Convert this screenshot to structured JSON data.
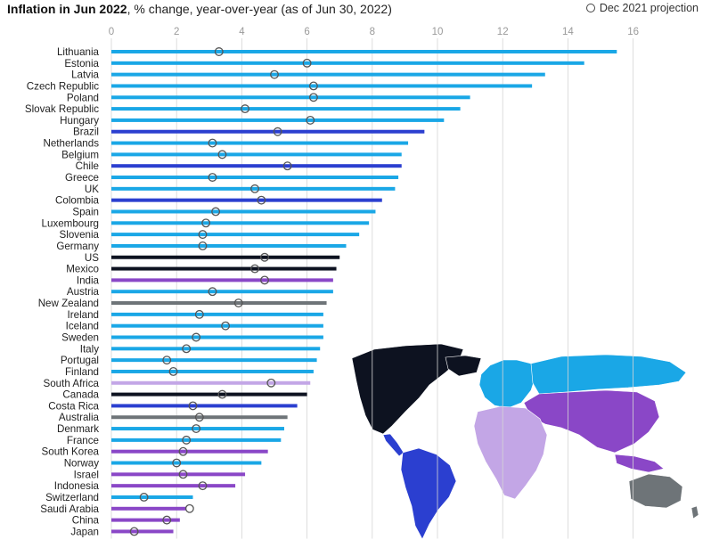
{
  "chart_data": {
    "type": "bar",
    "title": "Inflation in Jun 2022",
    "subtitle": ", % change, year-over-year (as of Jun 30, 2022)",
    "legend": [
      {
        "label": "Dec 2021 projection",
        "marker": "hollow-circle"
      }
    ],
    "legend_position": "top-right",
    "orientation": "horizontal",
    "xlim": [
      0,
      16
    ],
    "x_ticks": [
      0,
      2,
      4,
      6,
      8,
      10,
      12,
      14,
      16
    ],
    "colors": {
      "Europe": "#1aa7e6",
      "Latin America": "#2b3fd0",
      "North America": "#0d1220",
      "Asia / Middle East": "#8a47c7",
      "Africa": "#c3a6e6",
      "Oceania": "#6e7478"
    },
    "bars": [
      {
        "country": "Lithuania",
        "value": 15.5,
        "projection": 3.3,
        "region": "Europe"
      },
      {
        "country": "Estonia",
        "value": 14.5,
        "projection": 6.0,
        "region": "Europe"
      },
      {
        "country": "Latvia",
        "value": 13.3,
        "projection": 5.0,
        "region": "Europe"
      },
      {
        "country": "Czech Republic",
        "value": 12.9,
        "projection": 6.2,
        "region": "Europe"
      },
      {
        "country": "Poland",
        "value": 11.0,
        "projection": 6.2,
        "region": "Europe"
      },
      {
        "country": "Slovak Republic",
        "value": 10.7,
        "projection": 4.1,
        "region": "Europe"
      },
      {
        "country": "Hungary",
        "value": 10.2,
        "projection": 6.1,
        "region": "Europe"
      },
      {
        "country": "Brazil",
        "value": 9.6,
        "projection": 5.1,
        "region": "Latin America"
      },
      {
        "country": "Netherlands",
        "value": 9.1,
        "projection": 3.1,
        "region": "Europe"
      },
      {
        "country": "Belgium",
        "value": 8.9,
        "projection": 3.4,
        "region": "Europe"
      },
      {
        "country": "Chile",
        "value": 8.9,
        "projection": 5.4,
        "region": "Latin America"
      },
      {
        "country": "Greece",
        "value": 8.8,
        "projection": 3.1,
        "region": "Europe"
      },
      {
        "country": "UK",
        "value": 8.7,
        "projection": 4.4,
        "region": "Europe"
      },
      {
        "country": "Colombia",
        "value": 8.3,
        "projection": 4.6,
        "region": "Latin America"
      },
      {
        "country": "Spain",
        "value": 8.1,
        "projection": 3.2,
        "region": "Europe"
      },
      {
        "country": "Luxembourg",
        "value": 7.9,
        "projection": 2.9,
        "region": "Europe"
      },
      {
        "country": "Slovenia",
        "value": 7.6,
        "projection": 2.8,
        "region": "Europe"
      },
      {
        "country": "Germany",
        "value": 7.2,
        "projection": 2.8,
        "region": "Europe"
      },
      {
        "country": "US",
        "value": 7.0,
        "projection": 4.7,
        "region": "North America"
      },
      {
        "country": "Mexico",
        "value": 6.9,
        "projection": 4.4,
        "region": "North America"
      },
      {
        "country": "India",
        "value": 6.8,
        "projection": 4.7,
        "region": "Asia / Middle East"
      },
      {
        "country": "Austria",
        "value": 6.8,
        "projection": 3.1,
        "region": "Europe"
      },
      {
        "country": "New Zealand",
        "value": 6.6,
        "projection": 3.9,
        "region": "Oceania"
      },
      {
        "country": "Ireland",
        "value": 6.5,
        "projection": 2.7,
        "region": "Europe"
      },
      {
        "country": "Iceland",
        "value": 6.5,
        "projection": 3.5,
        "region": "Europe"
      },
      {
        "country": "Sweden",
        "value": 6.5,
        "projection": 2.6,
        "region": "Europe"
      },
      {
        "country": "Italy",
        "value": 6.4,
        "projection": 2.3,
        "region": "Europe"
      },
      {
        "country": "Portugal",
        "value": 6.3,
        "projection": 1.7,
        "region": "Europe"
      },
      {
        "country": "Finland",
        "value": 6.2,
        "projection": 1.9,
        "region": "Europe"
      },
      {
        "country": "South Africa",
        "value": 6.1,
        "projection": 4.9,
        "region": "Africa"
      },
      {
        "country": "Canada",
        "value": 6.0,
        "projection": 3.4,
        "region": "North America"
      },
      {
        "country": "Costa Rica",
        "value": 5.7,
        "projection": 2.5,
        "region": "Latin America"
      },
      {
        "country": "Australia",
        "value": 5.4,
        "projection": 2.7,
        "region": "Oceania"
      },
      {
        "country": "Denmark",
        "value": 5.3,
        "projection": 2.6,
        "region": "Europe"
      },
      {
        "country": "France",
        "value": 5.2,
        "projection": 2.3,
        "region": "Europe"
      },
      {
        "country": "South Korea",
        "value": 4.8,
        "projection": 2.2,
        "region": "Asia / Middle East"
      },
      {
        "country": "Norway",
        "value": 4.6,
        "projection": 2.0,
        "region": "Europe"
      },
      {
        "country": "Israel",
        "value": 4.1,
        "projection": 2.2,
        "region": "Asia / Middle East"
      },
      {
        "country": "Indonesia",
        "value": 3.8,
        "projection": 2.8,
        "region": "Asia / Middle East"
      },
      {
        "country": "Switzerland",
        "value": 2.5,
        "projection": 1.0,
        "region": "Europe"
      },
      {
        "country": "Saudi Arabia",
        "value": 2.3,
        "projection": 2.4,
        "region": "Asia / Middle East"
      },
      {
        "country": "China",
        "value": 2.1,
        "projection": 1.7,
        "region": "Asia / Middle East"
      },
      {
        "country": "Japan",
        "value": 1.9,
        "projection": 0.7,
        "region": "Asia / Middle East"
      }
    ]
  }
}
